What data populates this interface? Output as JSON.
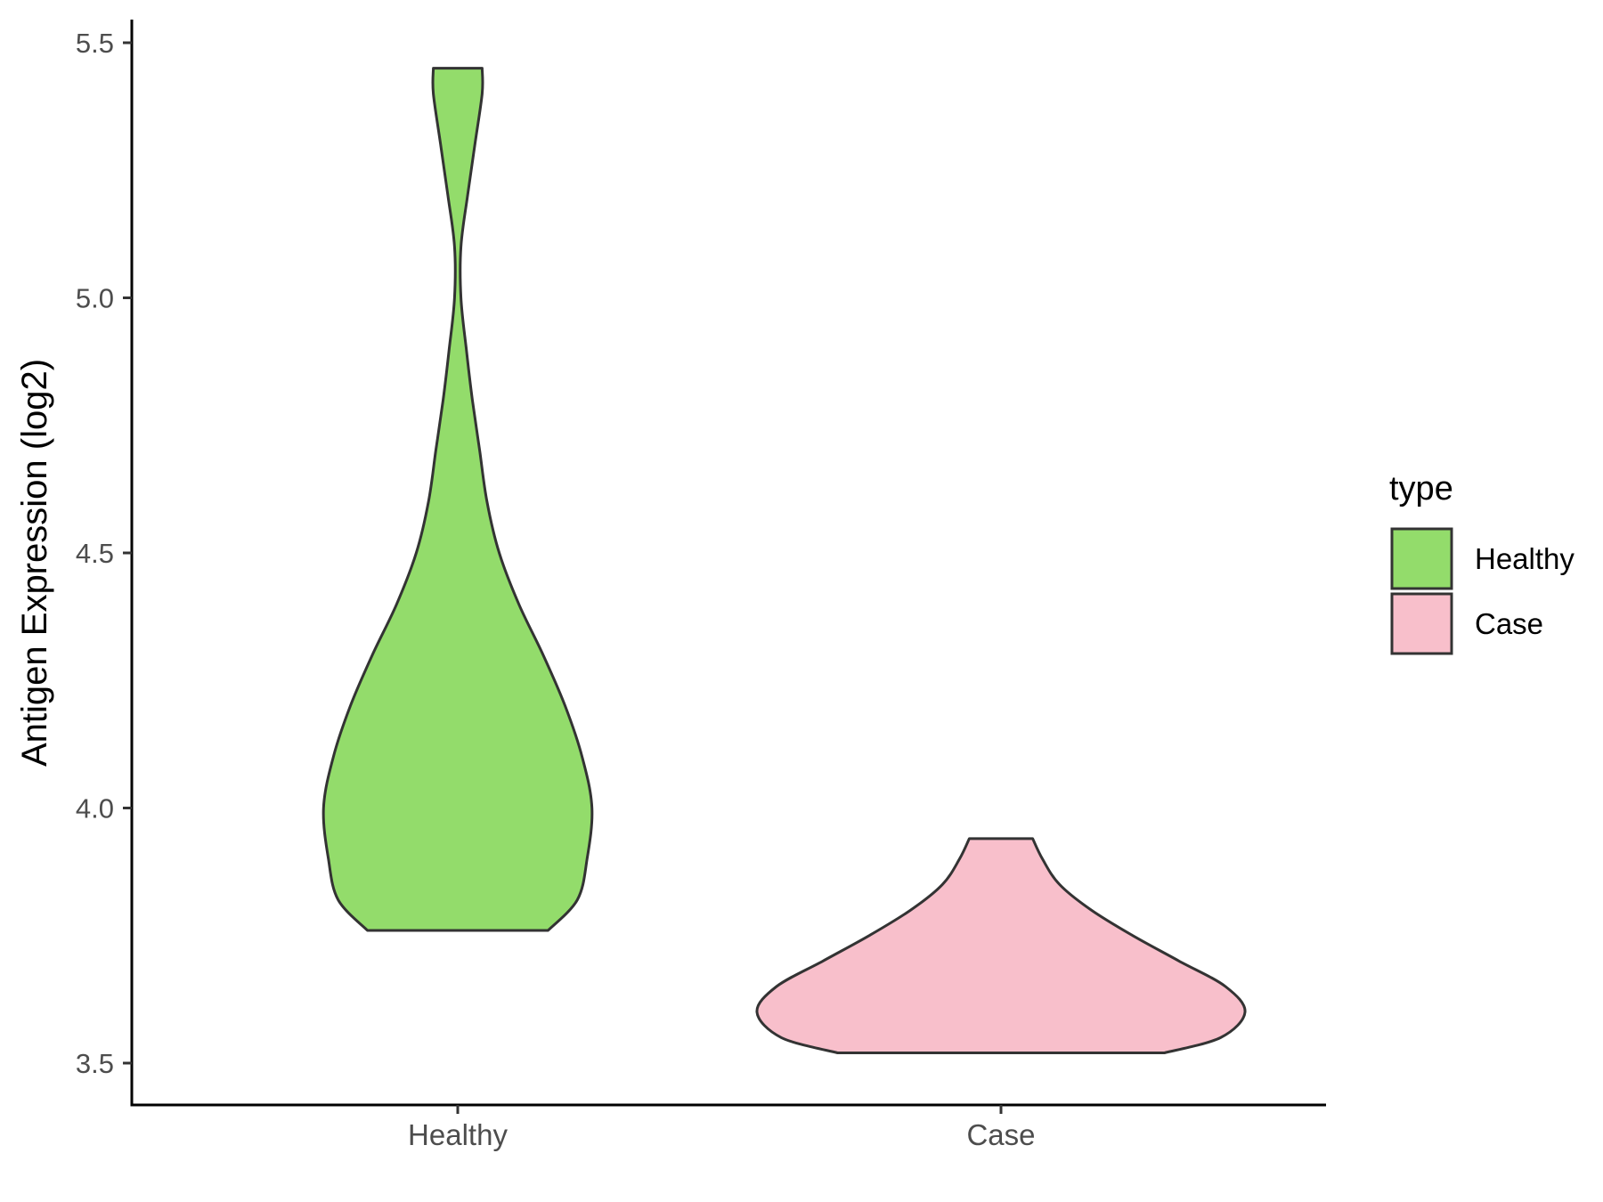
{
  "chart_data": {
    "type": "violin",
    "title": "",
    "xlabel": "",
    "ylabel": "Antigen Expression (log2)",
    "ylim": [
      3.42,
      5.55
    ],
    "yticks": [
      "3.5",
      "4.0",
      "4.5",
      "5.0",
      "5.5"
    ],
    "categories": [
      "Healthy",
      "Case"
    ],
    "grid": false,
    "legend": {
      "title": "type",
      "position": "right",
      "items": [
        {
          "label": "Healthy",
          "color": "#93dc6b"
        },
        {
          "label": "Case",
          "color": "#f8bfcb"
        }
      ]
    },
    "series": [
      {
        "name": "Healthy",
        "color": "#93dc6b",
        "min": 3.76,
        "max": 5.45,
        "density_profile": [
          [
            3.76,
            0.37
          ],
          [
            3.82,
            0.49
          ],
          [
            3.9,
            0.53
          ],
          [
            4.0,
            0.55
          ],
          [
            4.1,
            0.51
          ],
          [
            4.2,
            0.44
          ],
          [
            4.3,
            0.35
          ],
          [
            4.4,
            0.25
          ],
          [
            4.5,
            0.17
          ],
          [
            4.6,
            0.12
          ],
          [
            4.7,
            0.09
          ],
          [
            4.8,
            0.06
          ],
          [
            4.9,
            0.035
          ],
          [
            5.0,
            0.013
          ],
          [
            5.1,
            0.013
          ],
          [
            5.2,
            0.04
          ],
          [
            5.3,
            0.07
          ],
          [
            5.4,
            0.1
          ],
          [
            5.45,
            0.1
          ]
        ]
      },
      {
        "name": "Case",
        "color": "#f8bfcb",
        "min": 3.52,
        "max": 3.94,
        "density_profile": [
          [
            3.52,
            0.67
          ],
          [
            3.55,
            0.9
          ],
          [
            3.6,
            1.0
          ],
          [
            3.65,
            0.92
          ],
          [
            3.7,
            0.73
          ],
          [
            3.75,
            0.54
          ],
          [
            3.8,
            0.37
          ],
          [
            3.85,
            0.24
          ],
          [
            3.9,
            0.17
          ],
          [
            3.94,
            0.13
          ]
        ]
      }
    ]
  }
}
